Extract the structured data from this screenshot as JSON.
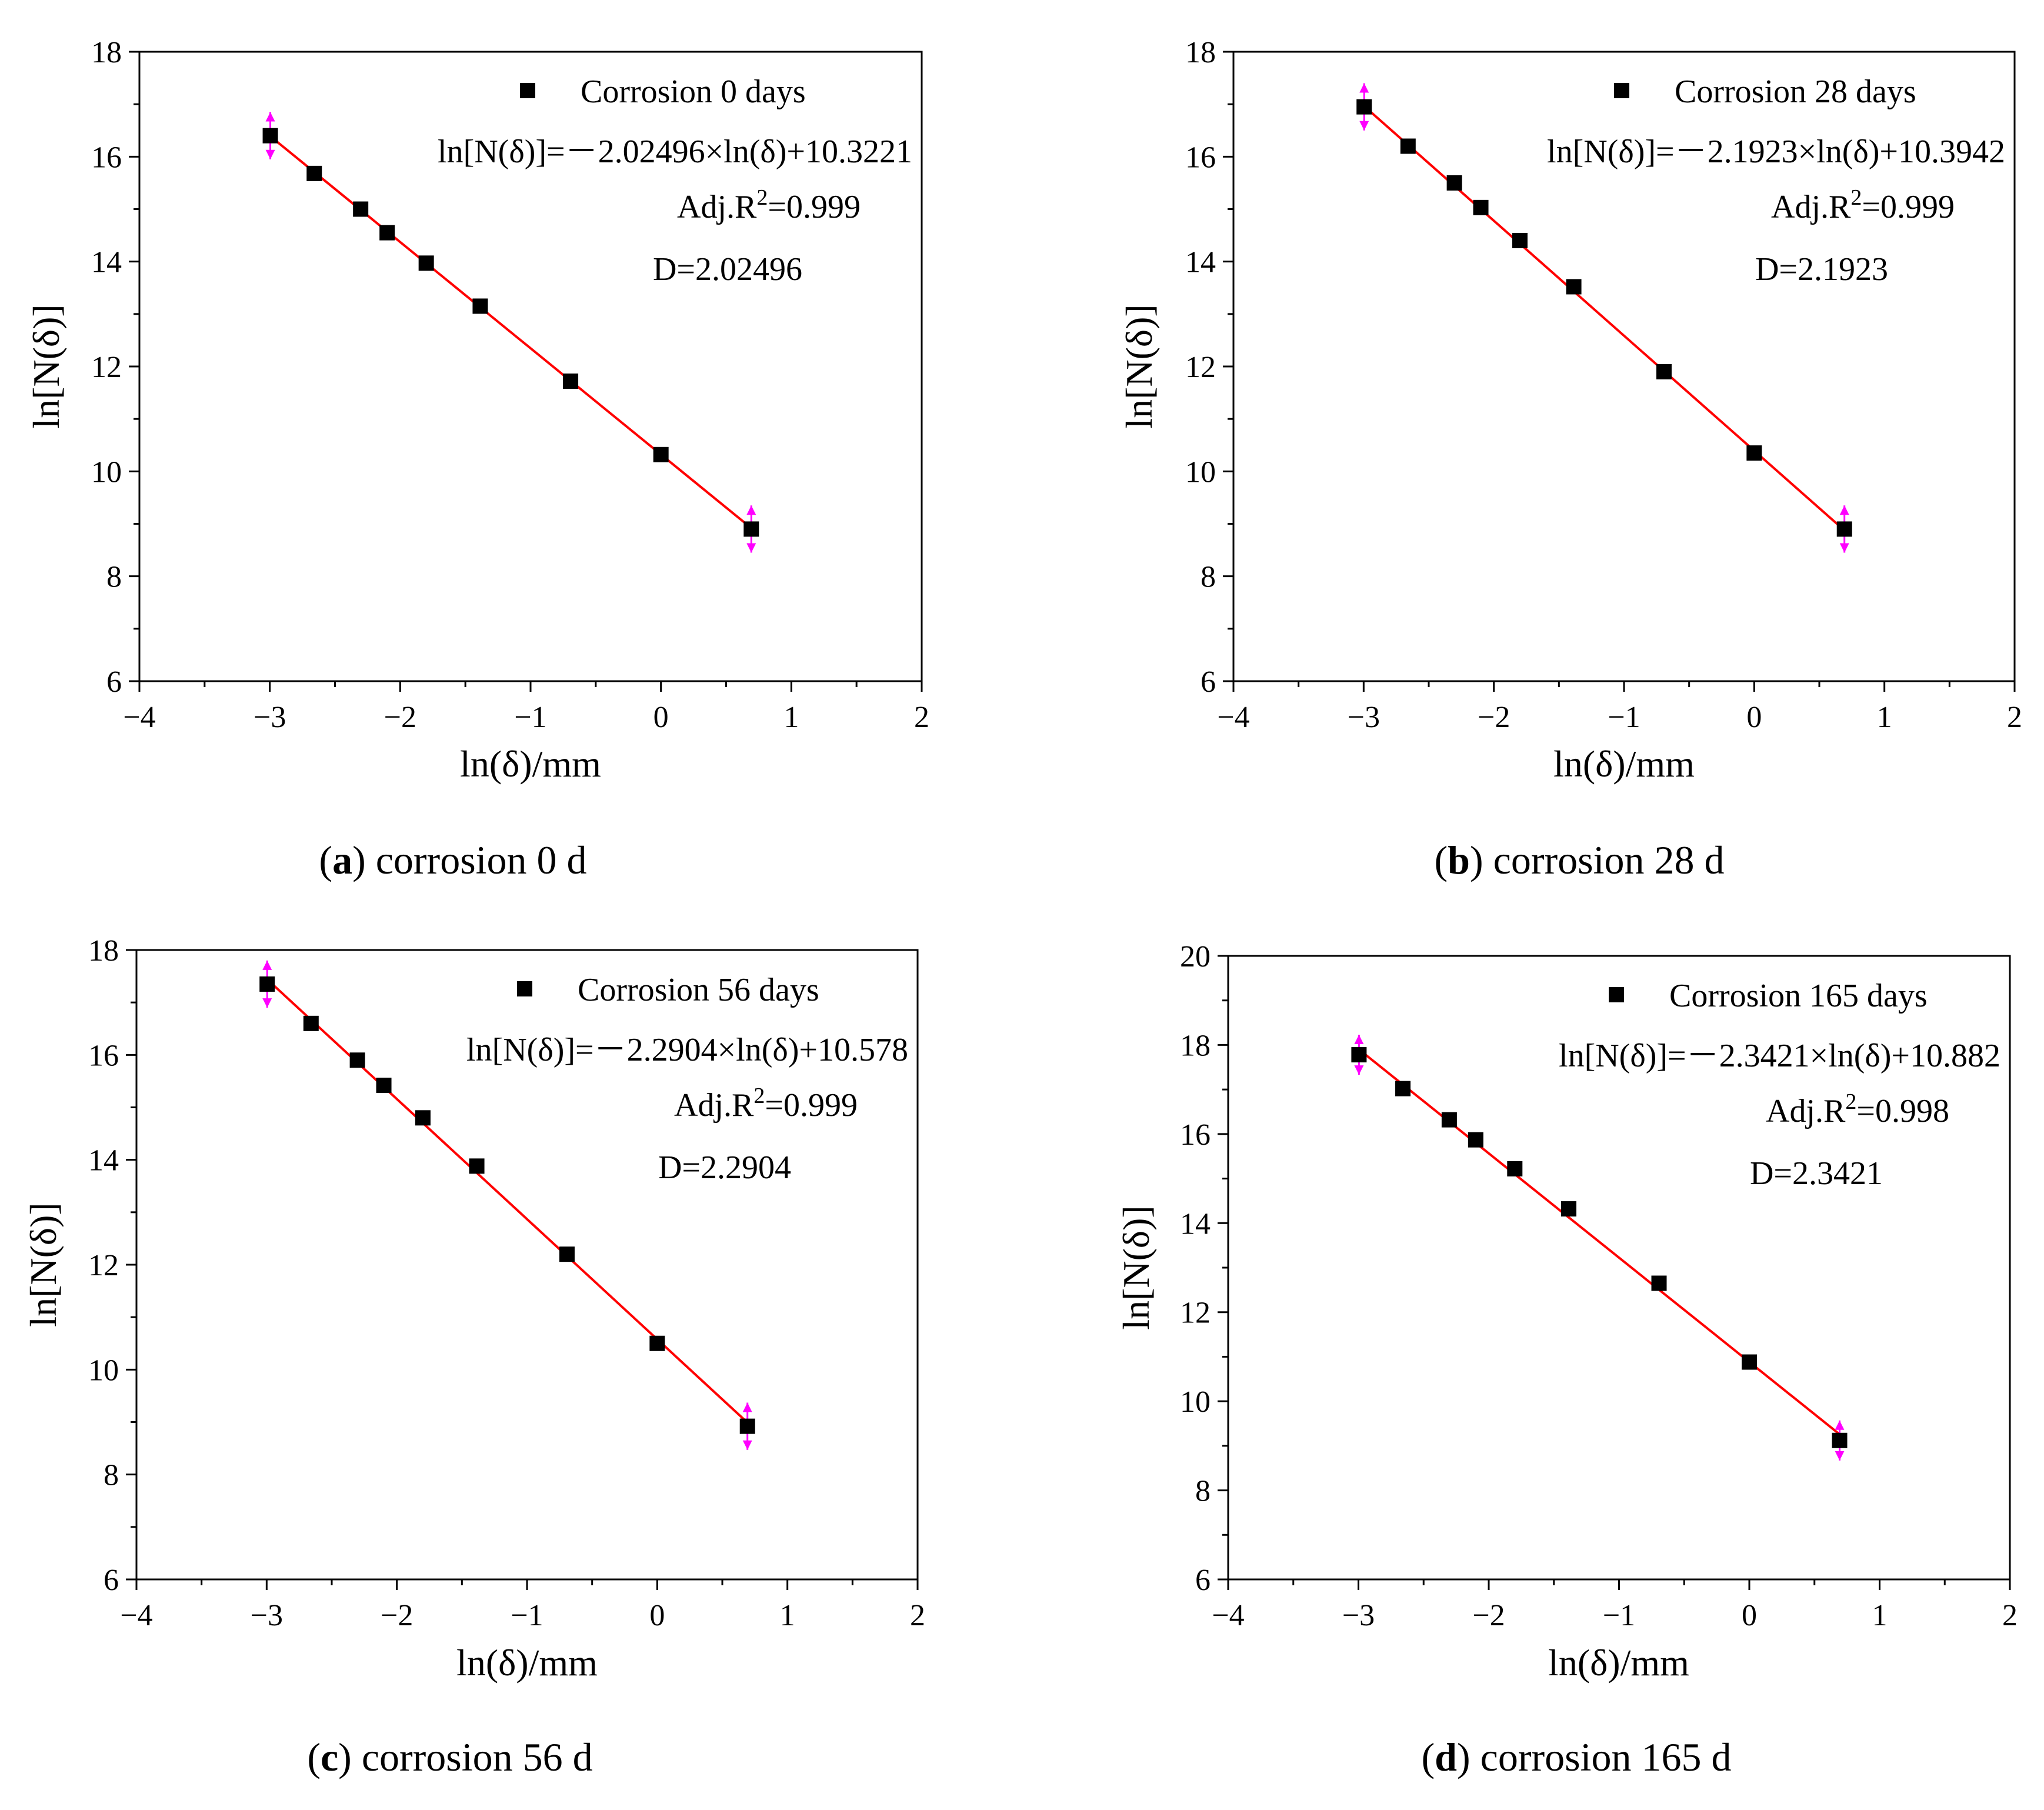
{
  "figure": {
    "panels": [
      {
        "id": "a",
        "caption_letter": "a",
        "caption_text": " corrosion 0 d",
        "legend_label": "Corrosion 0 days",
        "equation": "ln[N(δ)]=－2.02496×ln(δ)+10.3221",
        "adj_r2_prefix": "Adj.R",
        "adj_r2_sup": "2",
        "adj_r2_value": "=0.999",
        "dimension": "D=2.02496"
      },
      {
        "id": "b",
        "caption_letter": "b",
        "caption_text": " corrosion 28 d",
        "legend_label": "Corrosion 28 days",
        "equation": "ln[N(δ)]=－2.1923×ln(δ)+10.3942",
        "adj_r2_prefix": "Adj.R",
        "adj_r2_sup": "2",
        "adj_r2_value": "=0.999",
        "dimension": "D=2.1923"
      },
      {
        "id": "c",
        "caption_letter": "c",
        "caption_text": " corrosion 56 d",
        "legend_label": "Corrosion 56 days",
        "equation": "ln[N(δ)]=－2.2904×ln(δ)+10.578",
        "adj_r2_prefix": "Adj.R",
        "adj_r2_sup": "2",
        "adj_r2_value": "=0.999",
        "dimension": "D=2.2904"
      },
      {
        "id": "d",
        "caption_letter": "d",
        "caption_text": " corrosion 165 d",
        "legend_label": "Corrosion 165 days",
        "equation": "ln[N(δ)]=－2.3421×ln(δ)+10.882",
        "adj_r2_prefix": "Adj.R",
        "adj_r2_sup": "2",
        "adj_r2_value": "=0.998",
        "dimension": "D=2.3421"
      }
    ]
  },
  "chart_data": [
    {
      "type": "scatter",
      "title": "corrosion 0 d",
      "xlabel": "ln(δ)/mm",
      "ylabel": "ln[N(δ)]",
      "xlim": [
        -4,
        2
      ],
      "ylim": [
        6,
        18
      ],
      "xticks": [
        -4,
        -3,
        -2,
        -1,
        0,
        1,
        2
      ],
      "xtick_labels": [
        "−4",
        "−3",
        "−2",
        "−1",
        "0",
        "1",
        "2"
      ],
      "yticks": [
        6,
        8,
        10,
        12,
        14,
        16,
        18
      ],
      "ytick_labels": [
        "6",
        "8",
        "10",
        "12",
        "14",
        "16",
        "18"
      ],
      "series": [
        {
          "name": "Corrosion 0 days",
          "x": [
            -2.996,
            -2.659,
            -2.303,
            -2.1,
            -1.8,
            -1.386,
            -0.693,
            0.0,
            0.693
          ],
          "y": [
            16.4,
            15.68,
            15.0,
            14.55,
            13.97,
            13.15,
            11.72,
            10.32,
            8.9
          ]
        }
      ],
      "fit": {
        "slope": -2.02496,
        "intercept": 10.3221,
        "x_range": [
          -2.996,
          0.693
        ]
      },
      "error_bar_points": [
        [
          -2.996,
          16.4
        ],
        [
          0.693,
          8.9
        ]
      ],
      "error_bar_half": 0.45
    },
    {
      "type": "scatter",
      "title": "corrosion 28 d",
      "xlabel": "ln(δ)/mm",
      "ylabel": "ln[N(δ)]",
      "xlim": [
        -4,
        2
      ],
      "ylim": [
        6,
        18
      ],
      "xticks": [
        -4,
        -3,
        -2,
        -1,
        0,
        1,
        2
      ],
      "xtick_labels": [
        "−4",
        "−3",
        "−2",
        "−1",
        "0",
        "1",
        "2"
      ],
      "yticks": [
        6,
        8,
        10,
        12,
        14,
        16,
        18
      ],
      "ytick_labels": [
        "6",
        "8",
        "10",
        "12",
        "14",
        "16",
        "18"
      ],
      "series": [
        {
          "name": "Corrosion 28 days",
          "x": [
            -2.996,
            -2.659,
            -2.303,
            -2.1,
            -1.8,
            -1.386,
            -0.693,
            0.0,
            0.693
          ],
          "y": [
            16.95,
            16.2,
            15.5,
            15.03,
            14.4,
            13.52,
            11.9,
            10.35,
            8.9
          ]
        }
      ],
      "fit": {
        "slope": -2.1923,
        "intercept": 10.3942,
        "x_range": [
          -2.996,
          0.693
        ]
      },
      "error_bar_points": [
        [
          -2.996,
          16.95
        ],
        [
          0.693,
          8.9
        ]
      ],
      "error_bar_half": 0.45
    },
    {
      "type": "scatter",
      "title": "corrosion 56 d",
      "xlabel": "ln(δ)/mm",
      "ylabel": "ln[N(δ)]",
      "xlim": [
        -4,
        2
      ],
      "ylim": [
        6,
        18
      ],
      "xticks": [
        -4,
        -3,
        -2,
        -1,
        0,
        1,
        2
      ],
      "xtick_labels": [
        "−4",
        "−3",
        "−2",
        "−1",
        "0",
        "1",
        "2"
      ],
      "yticks": [
        6,
        8,
        10,
        12,
        14,
        16,
        18
      ],
      "ytick_labels": [
        "6",
        "8",
        "10",
        "12",
        "14",
        "16",
        "18"
      ],
      "series": [
        {
          "name": "Corrosion 56 days",
          "x": [
            -2.996,
            -2.659,
            -2.303,
            -2.1,
            -1.8,
            -1.386,
            -0.693,
            0.0,
            0.693
          ],
          "y": [
            17.35,
            16.6,
            15.9,
            15.42,
            14.8,
            13.88,
            12.2,
            10.5,
            8.92
          ]
        }
      ],
      "fit": {
        "slope": -2.2904,
        "intercept": 10.578,
        "x_range": [
          -2.996,
          0.693
        ]
      },
      "error_bar_points": [
        [
          -2.996,
          17.35
        ],
        [
          0.693,
          8.92
        ]
      ],
      "error_bar_half": 0.45
    },
    {
      "type": "scatter",
      "title": "corrosion 165 d",
      "xlabel": "ln(δ)/mm",
      "ylabel": "ln[N(δ)]",
      "xlim": [
        -4,
        2
      ],
      "ylim": [
        6,
        20
      ],
      "xticks": [
        -4,
        -3,
        -2,
        -1,
        0,
        1,
        2
      ],
      "xtick_labels": [
        "−4",
        "−3",
        "−2",
        "−1",
        "0",
        "1",
        "2"
      ],
      "yticks": [
        6,
        8,
        10,
        12,
        14,
        16,
        18,
        20
      ],
      "ytick_labels": [
        "6",
        "8",
        "10",
        "12",
        "14",
        "16",
        "18",
        "20"
      ],
      "series": [
        {
          "name": "Corrosion 165 days",
          "x": [
            -2.996,
            -2.659,
            -2.303,
            -2.1,
            -1.8,
            -1.386,
            -0.693,
            0.0,
            0.693
          ],
          "y": [
            17.78,
            17.02,
            16.32,
            15.87,
            15.22,
            14.32,
            12.65,
            10.88,
            9.12
          ]
        }
      ],
      "fit": {
        "slope": -2.3421,
        "intercept": 10.882,
        "x_range": [
          -2.996,
          0.693
        ]
      },
      "error_bar_points": [
        [
          -2.996,
          17.78
        ],
        [
          0.693,
          9.12
        ]
      ],
      "error_bar_half": 0.45
    }
  ]
}
